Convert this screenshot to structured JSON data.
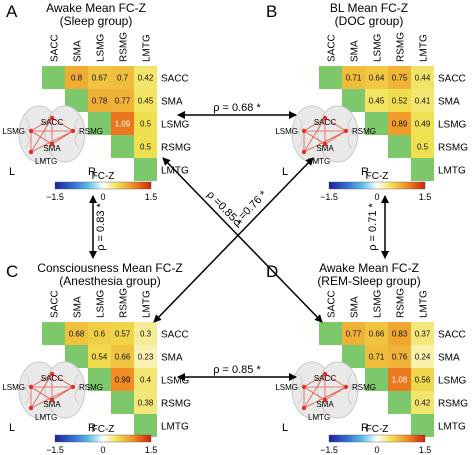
{
  "figure": {
    "panels": [
      {
        "letter": "A",
        "title": "Awake Mean FC-Z",
        "subtitle": "(Sleep group)",
        "values": [
          [
            "0.8",
            "0.67",
            "0.7",
            "0.42"
          ],
          [
            "0.78",
            "0.77",
            "0.45"
          ],
          [
            "1.09",
            "0.5"
          ],
          [
            "0.5"
          ]
        ]
      },
      {
        "letter": "B",
        "title": "BL Mean FC-Z",
        "subtitle": "(DOC group)",
        "values": [
          [
            "0.71",
            "0.64",
            "0.75",
            "0.44"
          ],
          [
            "0.45",
            "0.52",
            "0.41"
          ],
          [
            "0.89",
            "0.49"
          ],
          [
            "0.5"
          ]
        ]
      },
      {
        "letter": "C",
        "title": "Consciousness Mean FC-Z",
        "subtitle": "(Anesthesia group)",
        "values": [
          [
            "0.68",
            "0.6",
            "0.57",
            "0.3"
          ],
          [
            "0.54",
            "0.66",
            "0.23"
          ],
          [
            "0.99",
            "0.4"
          ],
          [
            "0.38"
          ]
        ]
      },
      {
        "letter": "D",
        "title": "Awake Mean FC-Z",
        "subtitle": "(REM-Sleep group)",
        "values": [
          [
            "0.77",
            "0.66",
            "0.83",
            "0.37"
          ],
          [
            "0.71",
            "0.76",
            "0.24"
          ],
          [
            "1.08",
            "0.56"
          ],
          [
            "0.42"
          ]
        ]
      }
    ],
    "regions": [
      "SACC",
      "SMA",
      "LSMG",
      "RSMG",
      "LMTG"
    ],
    "colorbar": {
      "label": "FC-Z",
      "min": "−1.5",
      "zero": "0",
      "max": "1.5"
    },
    "brain": {
      "labels": [
        "SACC",
        "SMA",
        "LSMG",
        "RSMG",
        "LMTG"
      ],
      "left": "L",
      "right": "R"
    },
    "correlations": {
      "ab": "ρ = 0.68 *",
      "cd": "ρ = 0.85 *",
      "ac": "ρ = 0.83 *",
      "bd": "ρ = 0.71 *",
      "ad": "ρ =0.85 *",
      "bc": "ρ =0.76 *"
    },
    "colors": {
      "accent_arrow": "#000000",
      "cmap": [
        "#2020a0",
        "#2f6cd0",
        "#5cc0e8",
        "#ffffff",
        "#f0e050",
        "#f08a20",
        "#d02010"
      ]
    }
  }
}
